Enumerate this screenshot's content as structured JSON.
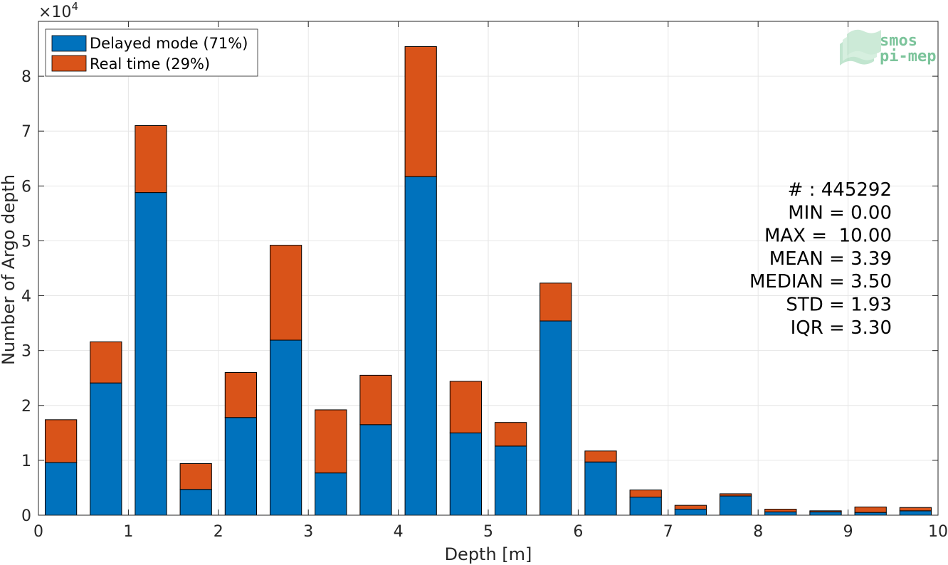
{
  "chart_data": {
    "type": "bar",
    "stacked": true,
    "x": [
      0.25,
      0.75,
      1.25,
      1.75,
      2.25,
      2.75,
      3.25,
      3.75,
      4.25,
      4.75,
      5.25,
      5.75,
      6.25,
      6.75,
      7.25,
      7.75,
      8.25,
      8.75,
      9.25,
      9.75
    ],
    "series": [
      {
        "name": "Delayed mode (71%)",
        "color": "#0072BD",
        "values": [
          9600,
          24100,
          58800,
          4700,
          17800,
          31900,
          7700,
          16500,
          61700,
          15000,
          12600,
          35400,
          9700,
          3300,
          1100,
          3500,
          600,
          600,
          500,
          800
        ]
      },
      {
        "name": "Real time (29%)",
        "color": "#D95319",
        "values": [
          7800,
          7500,
          12200,
          4700,
          8200,
          17300,
          11500,
          9000,
          23700,
          9400,
          4300,
          6900,
          2000,
          1300,
          700,
          400,
          500,
          200,
          1000,
          600
        ]
      }
    ],
    "xlabel": "Depth [m]",
    "ylabel": "Number of Argo depth",
    "xlim": [
      0,
      10
    ],
    "ylim": [
      0,
      90000
    ],
    "xticks": [
      0,
      1,
      2,
      3,
      4,
      5,
      6,
      7,
      8,
      9,
      10
    ],
    "yticks": [
      0,
      1,
      2,
      3,
      4,
      5,
      6,
      7,
      8
    ],
    "y_multiplier": "×10",
    "y_multiplier_exp": "4",
    "grid": true,
    "legend_position": "top-left",
    "annotation_lines": [
      "# : 445292",
      "MIN = 0.00",
      "MAX =  10.00",
      "MEAN = 3.39",
      "MEDIAN = 3.50",
      "STD = 1.93",
      "IQR = 3.30"
    ]
  },
  "logo": {
    "line1": "smos",
    "line2": "pi-mep"
  }
}
